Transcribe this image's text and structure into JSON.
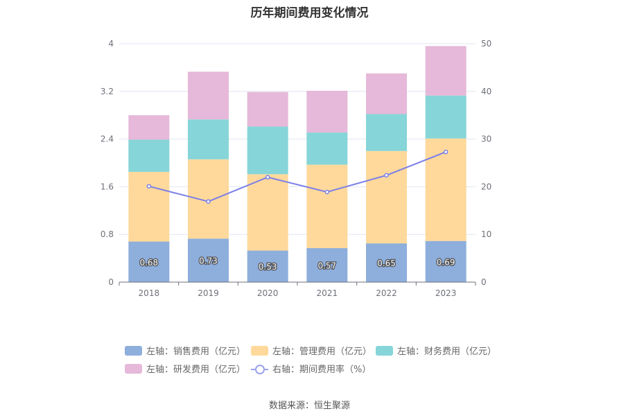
{
  "chart_data": {
    "type": "bar",
    "title": "历年期间费用变化情况",
    "categories": [
      "2018",
      "2019",
      "2020",
      "2021",
      "2022",
      "2023"
    ],
    "series": [
      {
        "name": "左轴：销售费用（亿元）",
        "axis": "left",
        "values": [
          0.68,
          0.73,
          0.53,
          0.57,
          0.65,
          0.69
        ],
        "color": "#8eaedc"
      },
      {
        "name": "左轴：管理费用（亿元）",
        "axis": "left",
        "values": [
          1.17,
          1.33,
          1.28,
          1.4,
          1.55,
          1.72
        ],
        "color": "#fed99b"
      },
      {
        "name": "左轴：财务费用（亿元）",
        "axis": "left",
        "values": [
          0.54,
          0.67,
          0.8,
          0.54,
          0.62,
          0.72
        ],
        "color": "#86d5d8"
      },
      {
        "name": "左轴：研发费用（亿元）",
        "axis": "left",
        "values": [
          0.41,
          0.8,
          0.58,
          0.7,
          0.68,
          0.83
        ],
        "color": "#e6b8d9"
      },
      {
        "name": "右轴：期间费用率（%）",
        "axis": "right",
        "type": "line",
        "values": [
          20.1,
          16.9,
          22.0,
          18.9,
          22.4,
          27.3
        ],
        "color": "#7b7fe8"
      }
    ],
    "data_labels": [
      "0.68",
      "0.73",
      "0.53",
      "0.57",
      "0.65",
      "0.69"
    ],
    "left_axis": {
      "ylim": [
        0,
        4
      ],
      "ticks": [
        "0",
        "0.8",
        "1.6",
        "2.4",
        "3.2",
        "4"
      ]
    },
    "right_axis": {
      "ylim": [
        0,
        50
      ],
      "ticks": [
        "0",
        "10",
        "20",
        "30",
        "40",
        "50"
      ]
    },
    "legend_position": "bottom"
  },
  "source": "数据来源：恒生聚源"
}
